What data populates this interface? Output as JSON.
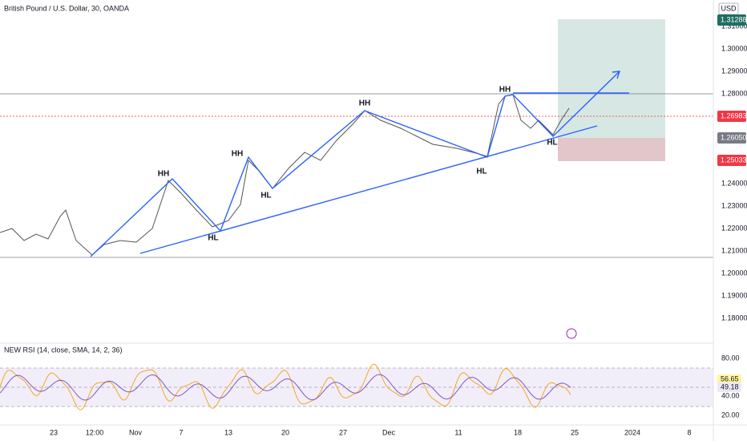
{
  "header": {
    "title": "British Pound / U.S. Dollar, 30, OANDA",
    "currency": "USD"
  },
  "price_axis": {
    "labels": [
      "1.31000",
      "1.30000",
      "1.29000",
      "1.28000",
      "1.24000",
      "1.23000",
      "1.22000",
      "1.21000",
      "1.20000",
      "1.19000",
      "1.18000"
    ]
  },
  "price_badges": [
    "1.31288",
    "1.26983",
    "1.26050",
    "1.25033"
  ],
  "annotations": [
    "HH",
    "HH",
    "HH",
    "HH",
    "HL",
    "HL",
    "HL",
    "HL"
  ],
  "rsi": {
    "title": "NEW RSI (14, close, SMA, 14, 2, 36)",
    "axis_labels": [
      "80.00",
      "40.00",
      "20.00"
    ],
    "badges": [
      "56.65",
      "49.18"
    ]
  },
  "time_axis": {
    "labels": [
      "23",
      "12:00",
      "Nov",
      "7",
      "13",
      "20",
      "27",
      "Dec",
      "11",
      "18",
      "25",
      "2024",
      "8"
    ]
  }
}
